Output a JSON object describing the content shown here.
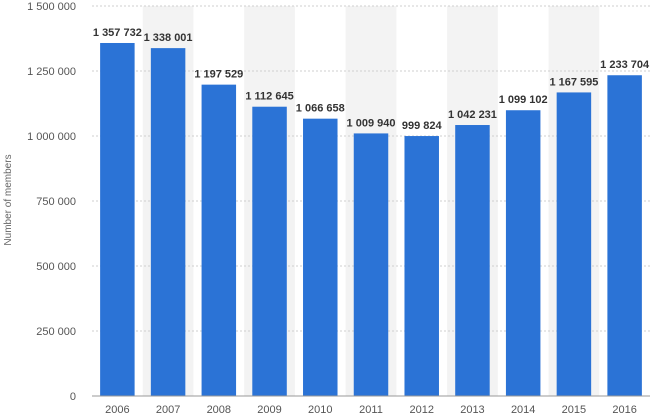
{
  "chart_data": {
    "type": "bar",
    "categories": [
      "2006",
      "2007",
      "2008",
      "2009",
      "2010",
      "2011",
      "2012",
      "2013",
      "2014",
      "2015",
      "2016"
    ],
    "values": [
      1357732,
      1338001,
      1197529,
      1112645,
      1066658,
      1009940,
      999824,
      1042231,
      1099102,
      1167595,
      1233704
    ],
    "value_labels": [
      "1 357 732",
      "1 338 001",
      "1 197 529",
      "1 112 645",
      "1 066 658",
      "1 009 940",
      "999 824",
      "1 042 231",
      "1 099 102",
      "1 167 595",
      "1 233 704"
    ],
    "yticks": [
      0,
      250000,
      500000,
      750000,
      1000000,
      1250000,
      1500000
    ],
    "ytick_labels": [
      "0",
      "250 000",
      "500 000",
      "750 000",
      "1 000 000",
      "1 250 000",
      "1 500 000"
    ],
    "ylim": [
      0,
      1500000
    ],
    "xlabel": "",
    "ylabel": "Number of members",
    "bar_color": "#2b73d6",
    "grid": true,
    "grid_color": "#cfcfcf",
    "band_color": "#f3f3f3"
  }
}
